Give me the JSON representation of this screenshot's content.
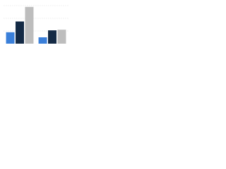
{
  "chart_data": {
    "type": "bar",
    "categories": [
      null,
      null
    ],
    "series": [
      {
        "color": "#3a7fd9",
        "values": [
          18,
          10
        ]
      },
      {
        "color": "#142a45",
        "values": [
          35,
          21
        ]
      },
      {
        "color": "#bdbdbd",
        "values": [
          58,
          22
        ]
      }
    ],
    "ylim": [
      0,
      60
    ],
    "yticks": [
      0,
      20,
      40,
      60
    ],
    "grid": true
  }
}
